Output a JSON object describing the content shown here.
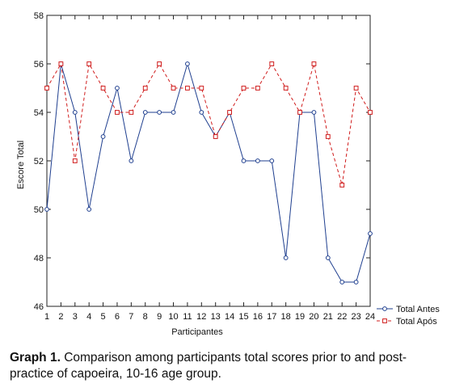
{
  "chart_data": {
    "type": "line",
    "x": [
      1,
      2,
      3,
      4,
      5,
      6,
      7,
      8,
      9,
      10,
      11,
      12,
      13,
      14,
      15,
      16,
      17,
      18,
      19,
      20,
      21,
      22,
      23,
      24
    ],
    "series": [
      {
        "name": "Total Antes",
        "color": "#1f3f8f",
        "marker": "circle",
        "dash": "solid",
        "values": [
          50,
          56,
          54,
          50,
          53,
          55,
          52,
          54,
          54,
          54,
          56,
          54,
          53,
          54,
          52,
          52,
          52,
          48,
          54,
          54,
          48,
          47,
          47,
          49
        ]
      },
      {
        "name": "Total Após",
        "color": "#d01c1c",
        "marker": "square",
        "dash": "dashed",
        "values": [
          55,
          56,
          52,
          56,
          55,
          54,
          54,
          55,
          56,
          55,
          55,
          55,
          53,
          54,
          55,
          55,
          56,
          55,
          54,
          56,
          53,
          51,
          55,
          54
        ]
      }
    ],
    "xlabel": "Participantes",
    "ylabel": "Escore Total",
    "ylim": [
      46,
      58
    ],
    "yticks": [
      46,
      48,
      50,
      52,
      54,
      56,
      58
    ],
    "xticks": [
      "1",
      "2",
      "3",
      "4",
      "5",
      "6",
      "7",
      "8",
      "9",
      "10",
      "11",
      "12",
      "13",
      "14",
      "15",
      "16",
      "17",
      "18",
      "19",
      "20",
      "21",
      "22",
      "23",
      "24"
    ],
    "grid": false,
    "legend": "right-bottom"
  },
  "caption": {
    "prefix": "Graph 1.",
    "text": " Comparison among participants total scores prior to and post-practice of capoeira, 10-16 age group."
  }
}
